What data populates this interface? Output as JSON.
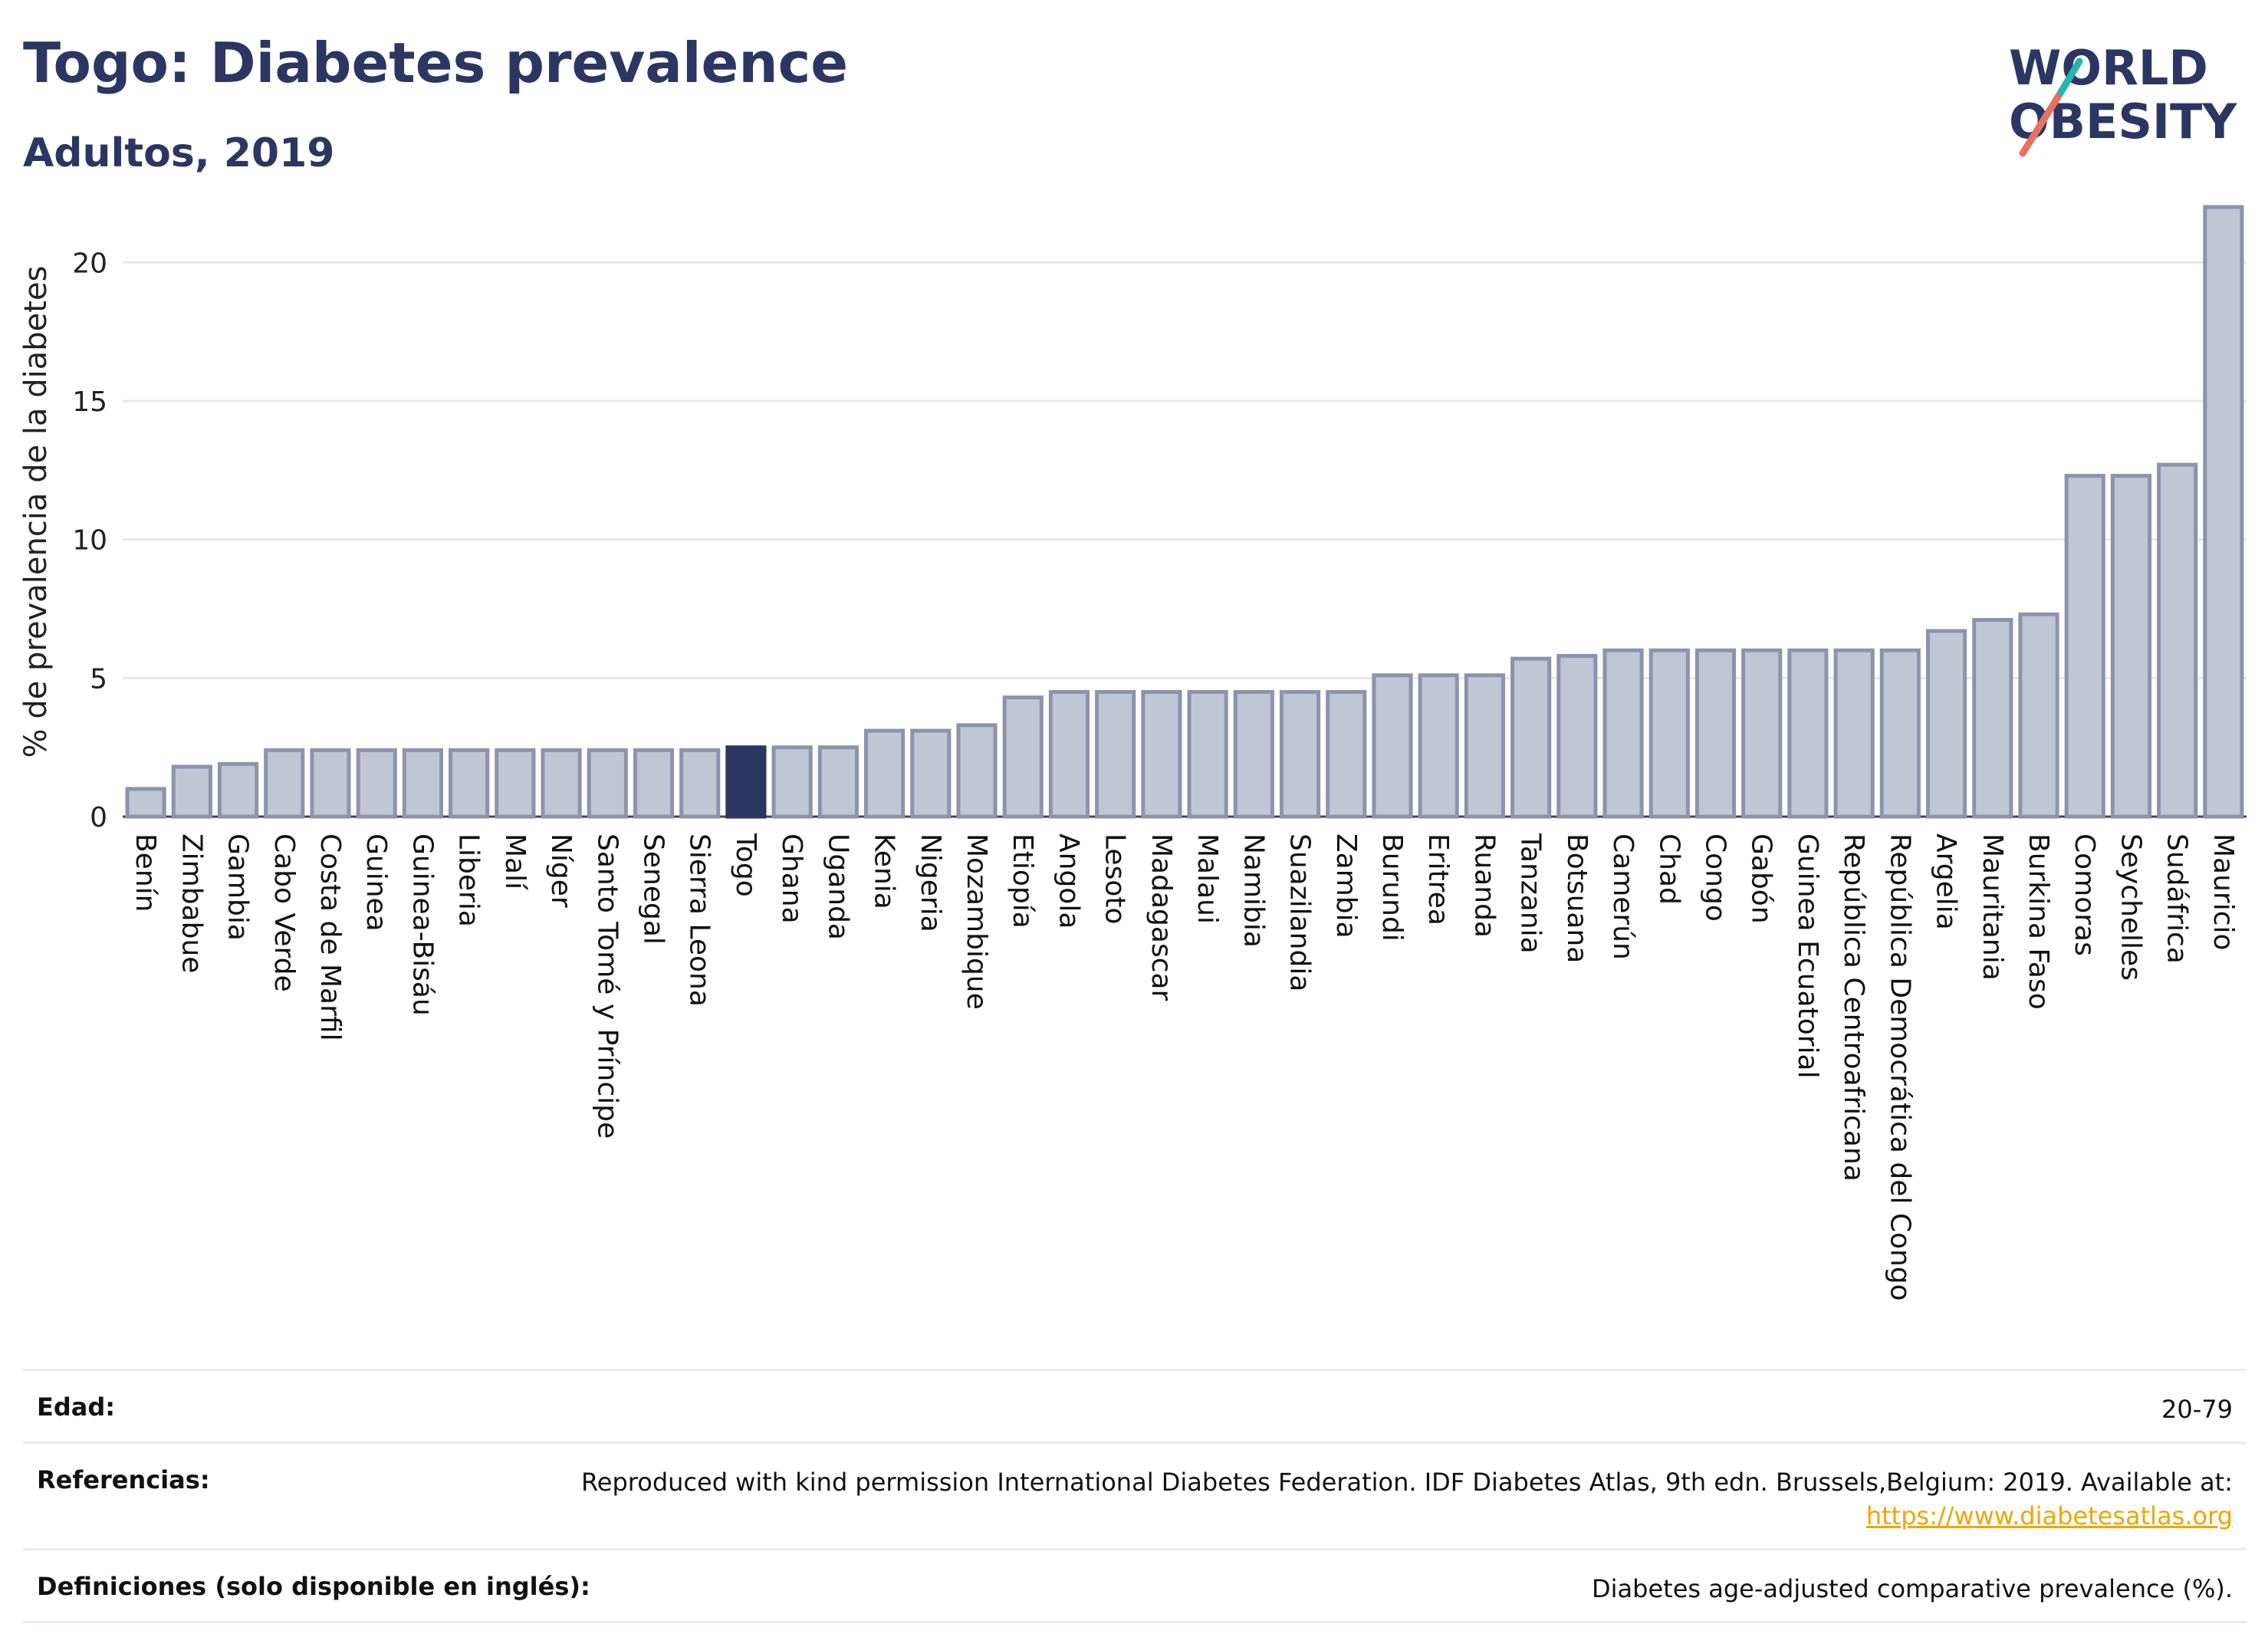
{
  "header": {
    "title": "Togo: Diabetes prevalence",
    "subtitle": "Adultos, 2019"
  },
  "logo": {
    "line1": "WORLD",
    "line2": "OBESITY"
  },
  "colors": {
    "bar": "#c1c6d4",
    "bar_border": "#8d93ac",
    "highlight": "#2c3663",
    "grid": "#e6e8ef",
    "logo_text": "#2c3663",
    "logo_teal": "#27b3b0",
    "logo_coral": "#e8705f"
  },
  "chart_data": {
    "type": "bar",
    "title": "Togo: Diabetes prevalence",
    "subtitle": "Adultos, 2019",
    "xlabel": "",
    "ylabel": "% de prevalencia de la diabetes",
    "ylim": [
      0,
      22
    ],
    "yticks": [
      0,
      5,
      10,
      15,
      20
    ],
    "grid": true,
    "highlight": "Togo",
    "categories": [
      "Benín",
      "Zimbabue",
      "Gambia",
      "Cabo Verde",
      "Costa de Marfil",
      "Guinea",
      "Guinea-Bisáu",
      "Liberia",
      "Malí",
      "Níger",
      "Santo Tomé y Príncipe",
      "Senegal",
      "Sierra Leona",
      "Togo",
      "Ghana",
      "Uganda",
      "Kenia",
      "Nigeria",
      "Mozambique",
      "Etiopía",
      "Angola",
      "Lesoto",
      "Madagascar",
      "Malaui",
      "Namibia",
      "Suazilandia",
      "Zambia",
      "Burundi",
      "Eritrea",
      "Ruanda",
      "Tanzania",
      "Botsuana",
      "Camerún",
      "Chad",
      "Congo",
      "Gabón",
      "Guinea Ecuatorial",
      "República Centroafricana",
      "República Democrática del Congo",
      "Argelia",
      "Mauritania",
      "Burkina Faso",
      "Comoras",
      "Seychelles",
      "Sudáfrica",
      "Mauricio"
    ],
    "values": [
      1.0,
      1.8,
      1.9,
      2.4,
      2.4,
      2.4,
      2.4,
      2.4,
      2.4,
      2.4,
      2.4,
      2.4,
      2.4,
      2.5,
      2.5,
      2.5,
      3.1,
      3.1,
      3.3,
      4.3,
      4.5,
      4.5,
      4.5,
      4.5,
      4.5,
      4.5,
      4.5,
      5.1,
      5.1,
      5.1,
      5.7,
      5.8,
      6.0,
      6.0,
      6.0,
      6.0,
      6.0,
      6.0,
      6.0,
      6.7,
      7.1,
      7.3,
      12.3,
      12.3,
      12.7,
      22.0
    ]
  },
  "info": [
    {
      "key": "Edad:",
      "value": "20-79"
    },
    {
      "key": "Referencias:",
      "value": "Reproduced with kind permission International Diabetes Federation. IDF Diabetes Atlas, 9th edn. Brussels,Belgium: 2019. Available at:",
      "link": "https://www.diabetesatlas.org"
    },
    {
      "key": "Definiciones (solo disponible en inglés):",
      "value": "Diabetes age-adjusted comparative prevalence (%)."
    }
  ]
}
